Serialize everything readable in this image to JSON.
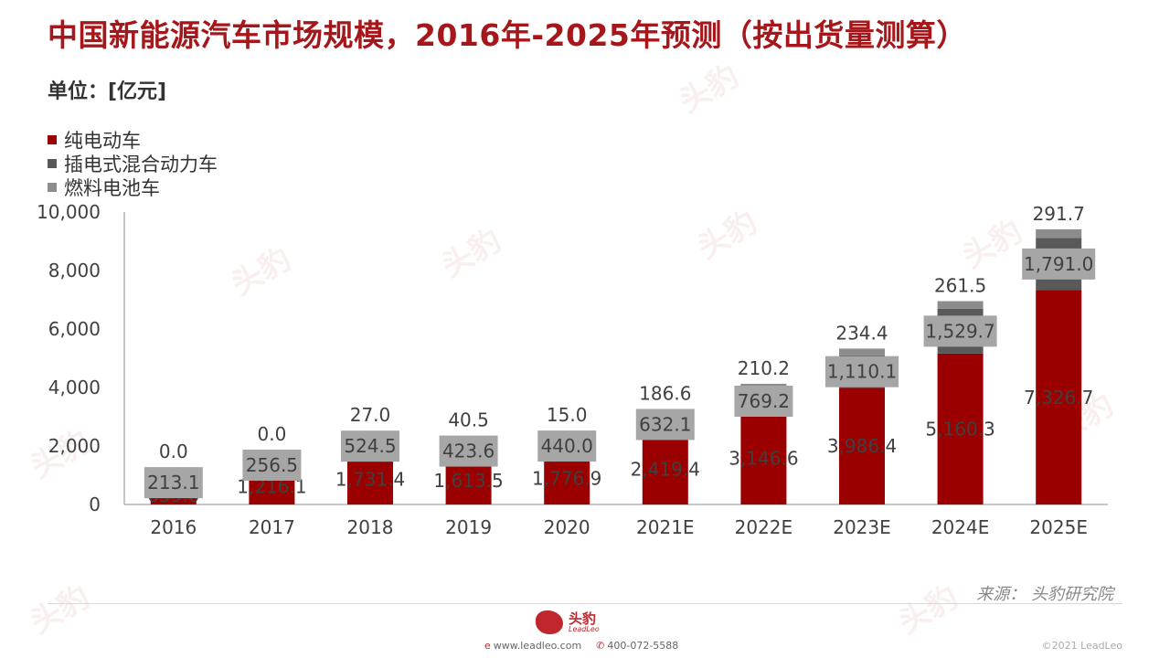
{
  "title": "中国新能源汽车市场规模，2016年-2025年预测（按出货量测算）",
  "unit": "单位：[亿元]",
  "source": "来源：   头豹研究院",
  "footer": {
    "logo_cn": "头豹",
    "logo_en": "LeadLeo",
    "website": "www.leadleo.com",
    "phone": "400-072-5588",
    "copyright": "©2021 LeadLeo"
  },
  "colors": {
    "bev": "#9b0000",
    "phev": "#595959",
    "fcev": "#8c8c8c",
    "title": "#a5171b"
  },
  "chart_data": {
    "type": "bar",
    "stacked": true,
    "categories": [
      "2016",
      "2017",
      "2018",
      "2019",
      "2020",
      "2021E",
      "2022E",
      "2023E",
      "2024E",
      "2025E"
    ],
    "series": [
      {
        "name": "纯电动车",
        "values": [
          639.0,
          1216.1,
          1731.4,
          1613.5,
          1776.9,
          2419.4,
          3146.6,
          3986.4,
          5160.3,
          7326.7
        ]
      },
      {
        "name": "插电式混合动力车",
        "values": [
          213.1,
          256.5,
          524.5,
          423.6,
          440.0,
          632.1,
          769.2,
          1110.1,
          1529.7,
          1791.0
        ]
      },
      {
        "name": "燃料电池车",
        "values": [
          0.0,
          0.0,
          27.0,
          40.5,
          15.0,
          186.6,
          210.2,
          234.4,
          261.5,
          291.7
        ]
      }
    ],
    "value_labels": {
      "bev": [
        "639.0",
        "1,216.1",
        "1,731.4",
        "1,613.5",
        "1,776.9",
        "2,419.4",
        "3,146.6",
        "3,986.4",
        "5,160.3",
        "7,326.7"
      ],
      "phev": [
        "213.1",
        "256.5",
        "524.5",
        "423.6",
        "440.0",
        "632.1",
        "769.2",
        "1,110.1",
        "1,529.7",
        "1,791.0"
      ],
      "fcev": [
        "0.0",
        "0.0",
        "27.0",
        "40.5",
        "15.0",
        "186.6",
        "210.2",
        "234.4",
        "261.5",
        "291.7"
      ]
    },
    "yticks": [
      "0",
      "2,000",
      "4,000",
      "6,000",
      "8,000",
      "10,000"
    ],
    "ylim": [
      0,
      10000
    ],
    "legend_position": "top-left",
    "grid": false
  }
}
